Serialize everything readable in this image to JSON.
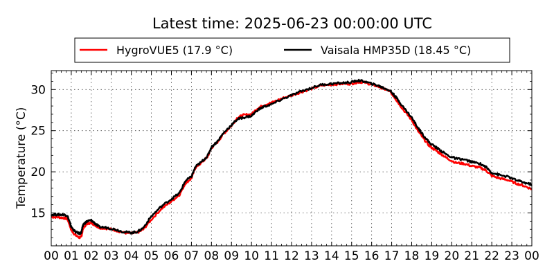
{
  "chart_data": {
    "type": "line",
    "title": "Latest time: 2025-06-23 00:00:00 UTC",
    "xlabel": "",
    "ylabel": "Temperature (°C)",
    "xlim": [
      0,
      24
    ],
    "ylim": [
      11,
      32.3
    ],
    "x_ticks": [
      "00",
      "01",
      "02",
      "03",
      "04",
      "05",
      "06",
      "07",
      "08",
      "09",
      "10",
      "11",
      "12",
      "13",
      "14",
      "15",
      "16",
      "17",
      "18",
      "19",
      "20",
      "21",
      "22",
      "23",
      "00"
    ],
    "y_ticks": [
      15,
      20,
      25,
      30
    ],
    "grid": true,
    "legend_position": "top",
    "series": [
      {
        "name": "HygroVUE5 (17.9 °C)",
        "color": "#ff0000",
        "points": [
          [
            0,
            14.5
          ],
          [
            0.3,
            14.5
          ],
          [
            0.6,
            14.4
          ],
          [
            0.8,
            14.3
          ],
          [
            0.9,
            13.7
          ],
          [
            1.0,
            12.9
          ],
          [
            1.2,
            12.3
          ],
          [
            1.4,
            12.0
          ],
          [
            1.5,
            12.1
          ],
          [
            1.6,
            13.2
          ],
          [
            1.8,
            13.7
          ],
          [
            2.0,
            13.8
          ],
          [
            2.2,
            13.5
          ],
          [
            2.4,
            13.2
          ],
          [
            2.8,
            13.1
          ],
          [
            3.2,
            12.9
          ],
          [
            3.6,
            12.6
          ],
          [
            4.0,
            12.5
          ],
          [
            4.3,
            12.6
          ],
          [
            4.6,
            13.0
          ],
          [
            5.0,
            14.2
          ],
          [
            5.5,
            15.5
          ],
          [
            6.0,
            16.4
          ],
          [
            6.4,
            17.2
          ],
          [
            6.7,
            18.6
          ],
          [
            7.0,
            19.2
          ],
          [
            7.2,
            20.5
          ],
          [
            7.5,
            21.1
          ],
          [
            7.8,
            21.8
          ],
          [
            8.0,
            22.9
          ],
          [
            8.3,
            23.6
          ],
          [
            8.6,
            24.6
          ],
          [
            9.0,
            25.6
          ],
          [
            9.3,
            26.6
          ],
          [
            9.6,
            26.9
          ],
          [
            10.0,
            27.0
          ],
          [
            10.3,
            27.7
          ],
          [
            10.6,
            28.1
          ],
          [
            11.0,
            28.4
          ],
          [
            11.5,
            28.9
          ],
          [
            12.0,
            29.3
          ],
          [
            12.5,
            29.7
          ],
          [
            13.0,
            30.1
          ],
          [
            13.5,
            30.5
          ],
          [
            14.0,
            30.6
          ],
          [
            14.5,
            30.7
          ],
          [
            15.0,
            30.7
          ],
          [
            15.3,
            30.9
          ],
          [
            15.6,
            30.9
          ],
          [
            16.0,
            30.6
          ],
          [
            16.3,
            30.4
          ],
          [
            16.6,
            30.1
          ],
          [
            16.9,
            29.8
          ],
          [
            17.1,
            29.2
          ],
          [
            17.3,
            28.5
          ],
          [
            17.6,
            27.5
          ],
          [
            18.0,
            26.3
          ],
          [
            18.3,
            25.0
          ],
          [
            18.6,
            24.0
          ],
          [
            18.9,
            23.1
          ],
          [
            19.2,
            22.6
          ],
          [
            19.5,
            22.1
          ],
          [
            19.8,
            21.6
          ],
          [
            20.2,
            21.1
          ],
          [
            20.6,
            21.0
          ],
          [
            21.0,
            20.7
          ],
          [
            21.4,
            20.5
          ],
          [
            21.7,
            20.2
          ],
          [
            22.0,
            19.5
          ],
          [
            22.4,
            19.2
          ],
          [
            22.8,
            19.0
          ],
          [
            23.2,
            18.6
          ],
          [
            23.6,
            18.3
          ],
          [
            24.0,
            17.9
          ]
        ]
      },
      {
        "name": "Vaisala HMP35D (18.45 °C)",
        "color": "#000000",
        "points": [
          [
            0,
            14.8
          ],
          [
            0.3,
            14.8
          ],
          [
            0.6,
            14.8
          ],
          [
            0.8,
            14.7
          ],
          [
            0.9,
            14.0
          ],
          [
            1.0,
            13.3
          ],
          [
            1.2,
            12.7
          ],
          [
            1.4,
            12.5
          ],
          [
            1.5,
            12.6
          ],
          [
            1.6,
            13.6
          ],
          [
            1.8,
            14.0
          ],
          [
            2.0,
            14.1
          ],
          [
            2.2,
            13.7
          ],
          [
            2.4,
            13.3
          ],
          [
            2.8,
            13.2
          ],
          [
            3.2,
            13.0
          ],
          [
            3.6,
            12.7
          ],
          [
            4.0,
            12.6
          ],
          [
            4.3,
            12.7
          ],
          [
            4.6,
            13.2
          ],
          [
            5.0,
            14.6
          ],
          [
            5.5,
            15.8
          ],
          [
            6.0,
            16.7
          ],
          [
            6.4,
            17.4
          ],
          [
            6.7,
            18.9
          ],
          [
            7.0,
            19.4
          ],
          [
            7.2,
            20.6
          ],
          [
            7.5,
            21.2
          ],
          [
            7.8,
            21.9
          ],
          [
            8.0,
            23.0
          ],
          [
            8.3,
            23.7
          ],
          [
            8.6,
            24.7
          ],
          [
            9.0,
            25.7
          ],
          [
            9.3,
            26.4
          ],
          [
            9.6,
            26.6
          ],
          [
            10.0,
            26.8
          ],
          [
            10.3,
            27.5
          ],
          [
            10.6,
            27.9
          ],
          [
            11.0,
            28.2
          ],
          [
            11.5,
            28.8
          ],
          [
            12.0,
            29.3
          ],
          [
            12.5,
            29.8
          ],
          [
            13.0,
            30.2
          ],
          [
            13.5,
            30.6
          ],
          [
            14.0,
            30.7
          ],
          [
            14.5,
            30.8
          ],
          [
            15.0,
            30.9
          ],
          [
            15.3,
            31.1
          ],
          [
            15.6,
            31.0
          ],
          [
            16.0,
            30.7
          ],
          [
            16.3,
            30.5
          ],
          [
            16.6,
            30.2
          ],
          [
            16.9,
            29.9
          ],
          [
            17.1,
            29.4
          ],
          [
            17.3,
            28.8
          ],
          [
            17.6,
            27.8
          ],
          [
            18.0,
            26.6
          ],
          [
            18.3,
            25.4
          ],
          [
            18.6,
            24.4
          ],
          [
            18.9,
            23.5
          ],
          [
            19.2,
            23.0
          ],
          [
            19.5,
            22.5
          ],
          [
            19.8,
            22.0
          ],
          [
            20.2,
            21.6
          ],
          [
            20.6,
            21.5
          ],
          [
            21.0,
            21.2
          ],
          [
            21.4,
            21.0
          ],
          [
            21.7,
            20.6
          ],
          [
            22.0,
            19.9
          ],
          [
            22.4,
            19.6
          ],
          [
            22.8,
            19.4
          ],
          [
            23.2,
            19.0
          ],
          [
            23.6,
            18.7
          ],
          [
            24.0,
            18.45
          ]
        ]
      }
    ]
  }
}
